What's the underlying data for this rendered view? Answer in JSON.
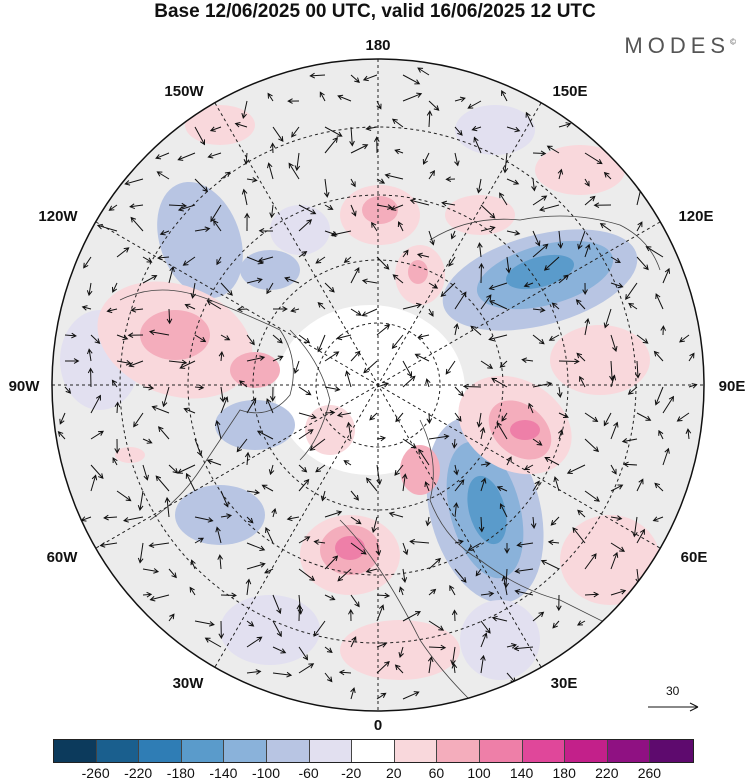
{
  "title": "Base 12/06/2025 00 UTC, valid 16/06/2025 12 UTC",
  "brand": {
    "text": "MODES",
    "mark": "©"
  },
  "map": {
    "projection": "north polar stereographic",
    "longitude_labels": {
      "top": "180",
      "top_left": "150W",
      "top_right": "150E",
      "upper_left": "120W",
      "upper_right": "120E",
      "left": "90W",
      "right": "90E",
      "lower_left": "60W",
      "lower_right": "60E",
      "bottom_left": "30W",
      "bottom_right": "30E",
      "bottom": "0"
    },
    "reference_vector": {
      "label": "30"
    }
  },
  "colorbar": {
    "colors": [
      "#0c3a5c",
      "#1a5f8e",
      "#2f7db5",
      "#5a9bcb",
      "#8ab2da",
      "#b8c5e3",
      "#e2e0f0",
      "#ffffff",
      "#f9d8dc",
      "#f4adbc",
      "#ee7fa8",
      "#e0479a",
      "#c3208a",
      "#8f1182",
      "#5e0a6e"
    ],
    "labels": [
      "-260",
      "-220",
      "-180",
      "-140",
      "-100",
      "-60",
      "-20",
      "20",
      "60",
      "100",
      "140",
      "180",
      "220",
      "260"
    ]
  }
}
